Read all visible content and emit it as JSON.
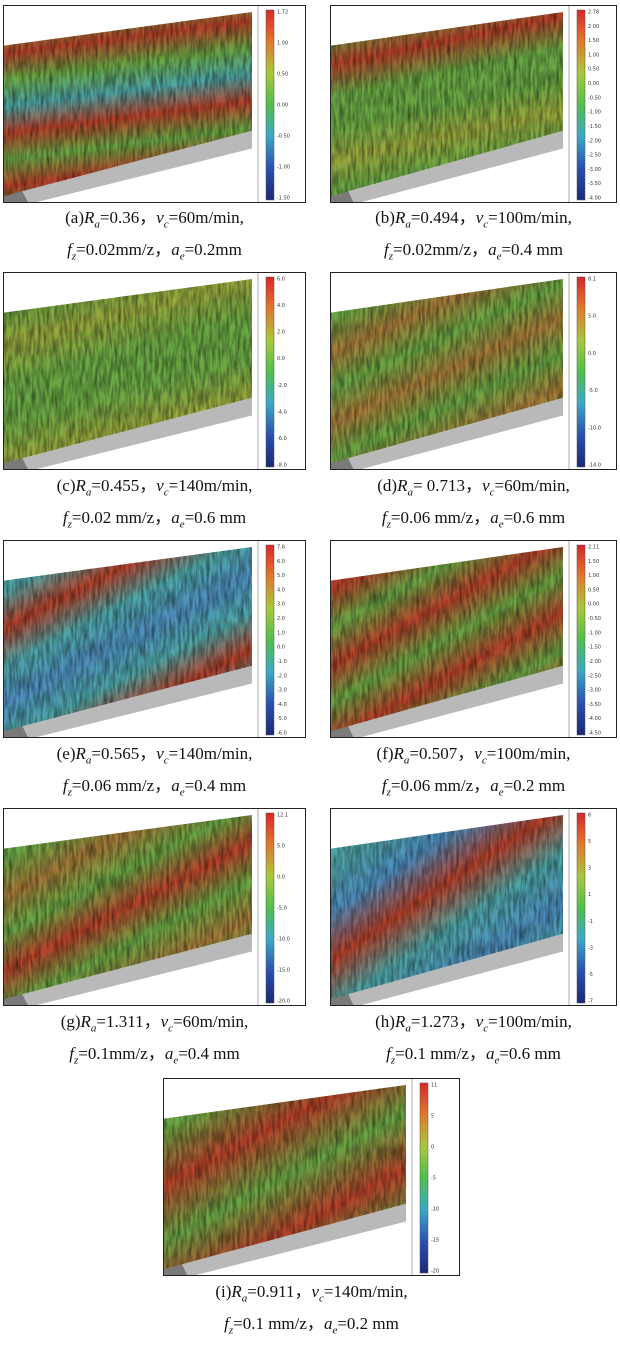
{
  "panels": [
    {
      "caption": [
        [
          [
            "(a)",
            "r"
          ],
          [
            "R",
            "i"
          ],
          [
            "a",
            "s"
          ],
          [
            "=0.36，",
            "r"
          ],
          [
            "v",
            "i"
          ],
          [
            "c",
            "s"
          ],
          [
            "=60m/min,",
            "r"
          ]
        ],
        [
          [
            "f",
            "i"
          ],
          [
            "z",
            "s"
          ],
          [
            "=0.02mm/z，",
            "r"
          ],
          [
            "a",
            "i"
          ],
          [
            "e",
            "s"
          ],
          [
            "=0.2mm",
            "r"
          ]
        ]
      ],
      "colorbar": [
        "1.72",
        "1.00",
        "0.50",
        "0.00",
        "-0.50",
        "-1.00",
        "-1.50"
      ]
    },
    {
      "caption": [
        [
          [
            "(b)",
            "r"
          ],
          [
            "R",
            "i"
          ],
          [
            "a",
            "s"
          ],
          [
            "=0.494，",
            "r"
          ],
          [
            "v",
            "i"
          ],
          [
            "c",
            "s"
          ],
          [
            "=100m/min,",
            "r"
          ]
        ],
        [
          [
            "f",
            "i"
          ],
          [
            "z",
            "s"
          ],
          [
            "=0.02mm/z，",
            "r"
          ],
          [
            "a",
            "i"
          ],
          [
            "e",
            "s"
          ],
          [
            "=0.4 mm",
            "r"
          ]
        ]
      ],
      "colorbar": [
        "2.78",
        "2.00",
        "1.50",
        "1.00",
        "0.50",
        "0.00",
        "-0.50",
        "-1.00",
        "-1.50",
        "-2.00",
        "-2.50",
        "-3.00",
        "-3.50",
        "-4.00"
      ]
    },
    {
      "caption": [
        [
          [
            "(c)",
            "r"
          ],
          [
            "R",
            "i"
          ],
          [
            "a",
            "s"
          ],
          [
            "=0.455，",
            "r"
          ],
          [
            "v",
            "i"
          ],
          [
            "c",
            "s"
          ],
          [
            "=140m/min,",
            "r"
          ]
        ],
        [
          [
            "f",
            "i"
          ],
          [
            "z",
            "s"
          ],
          [
            "=0.02 mm/z，",
            "r"
          ],
          [
            "a",
            "i"
          ],
          [
            "e",
            "s"
          ],
          [
            "=0.6 mm",
            "r"
          ]
        ]
      ],
      "colorbar": [
        "6.0",
        "4.0",
        "2.0",
        "0.0",
        "-2.0",
        "-4.0",
        "-6.0",
        "-8.0"
      ]
    },
    {
      "caption": [
        [
          [
            "(d)",
            "r"
          ],
          [
            "R",
            "i"
          ],
          [
            "a",
            "s"
          ],
          [
            "= 0.713，",
            "r"
          ],
          [
            "v",
            "i"
          ],
          [
            "c",
            "s"
          ],
          [
            "=60m/min,",
            "r"
          ]
        ],
        [
          [
            "f",
            "i"
          ],
          [
            "z",
            "s"
          ],
          [
            "=0.06 mm/z，",
            "r"
          ],
          [
            "a",
            "i"
          ],
          [
            "e",
            "s"
          ],
          [
            "=0.6 mm",
            "r"
          ]
        ]
      ],
      "colorbar": [
        "8.1",
        "5.0",
        "0.0",
        "-5.0",
        "-10.0",
        "-14.0"
      ]
    },
    {
      "caption": [
        [
          [
            "(e)",
            "r"
          ],
          [
            "R",
            "i"
          ],
          [
            "a",
            "s"
          ],
          [
            "=0.565，",
            "r"
          ],
          [
            "v",
            "i"
          ],
          [
            "c",
            "s"
          ],
          [
            "=140m/min,",
            "r"
          ]
        ],
        [
          [
            "f",
            "i"
          ],
          [
            "z",
            "s"
          ],
          [
            "=0.06 mm/z，",
            "r"
          ],
          [
            "a",
            "i"
          ],
          [
            "e",
            "s"
          ],
          [
            "=0.4 mm",
            "r"
          ]
        ]
      ],
      "colorbar": [
        "7.6",
        "6.0",
        "5.0",
        "4.0",
        "3.0",
        "2.0",
        "1.0",
        "0.0",
        "-1.0",
        "-2.0",
        "-3.0",
        "-4.0",
        "-5.0",
        "-6.0"
      ]
    },
    {
      "caption": [
        [
          [
            "(f)",
            "r"
          ],
          [
            "R",
            "i"
          ],
          [
            "a",
            "s"
          ],
          [
            "=0.507，",
            "r"
          ],
          [
            "v",
            "i"
          ],
          [
            "c",
            "s"
          ],
          [
            "=100m/min,",
            "r"
          ]
        ],
        [
          [
            "f",
            "i"
          ],
          [
            "z",
            "s"
          ],
          [
            "=0.06 mm/z，",
            "r"
          ],
          [
            "a",
            "i"
          ],
          [
            "e",
            "s"
          ],
          [
            "=0.2 mm",
            "r"
          ]
        ]
      ],
      "colorbar": [
        "2.11",
        "1.50",
        "1.00",
        "0.50",
        "0.00",
        "-0.50",
        "-1.00",
        "-1.50",
        "-2.00",
        "-2.50",
        "-3.00",
        "-3.50",
        "-4.00",
        "-4.50"
      ]
    },
    {
      "caption": [
        [
          [
            "(g)",
            "r"
          ],
          [
            "R",
            "i"
          ],
          [
            "a",
            "s"
          ],
          [
            "=1.311，",
            "r"
          ],
          [
            "v",
            "i"
          ],
          [
            "c",
            "s"
          ],
          [
            "=60m/min,",
            "r"
          ]
        ],
        [
          [
            "f",
            "i"
          ],
          [
            "z",
            "s"
          ],
          [
            "=0.1mm/z，",
            "r"
          ],
          [
            "a",
            "i"
          ],
          [
            "e",
            "s"
          ],
          [
            "=0.4 mm",
            "r"
          ]
        ]
      ],
      "colorbar": [
        "12.1",
        "5.0",
        "0.0",
        "-5.0",
        "-10.0",
        "-15.0",
        "-20.0"
      ]
    },
    {
      "caption": [
        [
          [
            "(h)",
            "r"
          ],
          [
            "R",
            "i"
          ],
          [
            "a",
            "s"
          ],
          [
            "=1.273，",
            "r"
          ],
          [
            "v",
            "i"
          ],
          [
            "c",
            "s"
          ],
          [
            "=100m/min,",
            "r"
          ]
        ],
        [
          [
            "f",
            "i"
          ],
          [
            "z",
            "s"
          ],
          [
            "=0.1 mm/z，",
            "r"
          ],
          [
            "a",
            "i"
          ],
          [
            "e",
            "s"
          ],
          [
            "=0.6 mm",
            "r"
          ]
        ]
      ],
      "colorbar": [
        "6",
        "5",
        "3",
        "1",
        "-1",
        "-3",
        "-5",
        "-7"
      ]
    },
    {
      "caption": [
        [
          [
            "(i)",
            "r"
          ],
          [
            "R",
            "i"
          ],
          [
            "a",
            "s"
          ],
          [
            "=0.911，",
            "r"
          ],
          [
            "v",
            "i"
          ],
          [
            "c",
            "s"
          ],
          [
            "=140m/min,",
            "r"
          ]
        ],
        [
          [
            "f",
            "i"
          ],
          [
            "z",
            "s"
          ],
          [
            "=0.1 mm/z，",
            "r"
          ],
          [
            "a",
            "i"
          ],
          [
            "e",
            "s"
          ],
          [
            "=0.2 mm",
            "r"
          ]
        ]
      ],
      "colorbar": [
        "11",
        "5",
        "0",
        "-5",
        "-10",
        "-15",
        "-20"
      ]
    }
  ]
}
